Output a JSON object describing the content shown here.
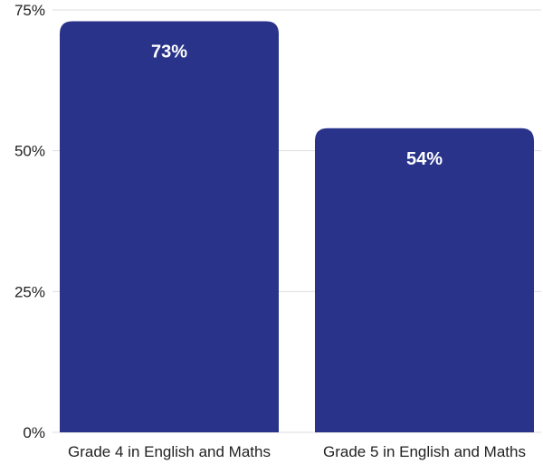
{
  "chart_data": {
    "type": "bar",
    "categories": [
      "Grade 4 in English and Maths",
      "Grade 5 in English and Maths"
    ],
    "values": [
      73,
      54
    ],
    "data_labels": [
      "73%",
      "54%"
    ],
    "ylim": [
      0,
      75
    ],
    "yticks": [
      0,
      25,
      50,
      75
    ],
    "ytick_labels": [
      "0%",
      "25%",
      "50%",
      "75%"
    ],
    "grid": true,
    "legend": "none",
    "bar_color": "#283389",
    "label_color": "#ffffff"
  }
}
